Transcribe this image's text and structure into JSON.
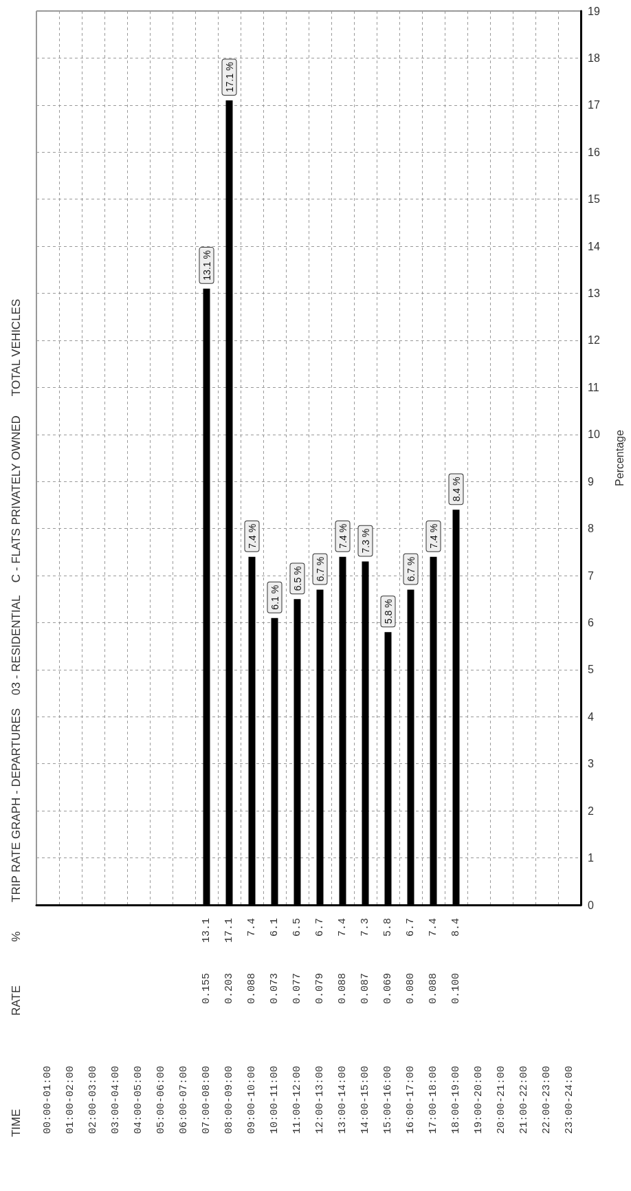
{
  "chart_data": {
    "type": "bar",
    "title": "TRIP RATE GRAPH - DEPARTURES    03 - RESIDENTIAL    C - FLATS PRIVATELY OWNED      TOTAL VEHICLES",
    "y2label": "Percentage",
    "categories": [
      "00:00-01:00",
      "01:00-02:00",
      "02:00-03:00",
      "03:00-04:00",
      "04:00-05:00",
      "05:00-06:00",
      "06:00-07:00",
      "07:00-08:00",
      "08:00-09:00",
      "09:00-10:00",
      "10:00-11:00",
      "11:00-12:00",
      "12:00-13:00",
      "13:00-14:00",
      "14:00-15:00",
      "15:00-16:00",
      "16:00-17:00",
      "17:00-18:00",
      "18:00-19:00",
      "19:00-20:00",
      "20:00-21:00",
      "21:00-22:00",
      "22:00-23:00",
      "23:00-24:00"
    ],
    "series": [
      {
        "axis": "y2",
        "color": "#000000",
        "values": [
          null,
          null,
          null,
          null,
          null,
          null,
          null,
          13.1,
          17.1,
          7.4,
          6.1,
          6.5,
          6.7,
          7.4,
          7.3,
          5.8,
          6.7,
          7.4,
          8.4,
          null,
          null,
          null,
          null,
          null
        ],
        "value_labels": [
          null,
          null,
          null,
          null,
          null,
          null,
          null,
          "13.1 %",
          "17.1 %",
          "7.4 %",
          "6.1 %",
          "6.5 %",
          "6.7 %",
          "7.4 %",
          "7.3 %",
          "5.8 %",
          "6.7 %",
          "7.4 %",
          "8.4 %",
          null,
          null,
          null,
          null,
          null
        ]
      }
    ],
    "y2lim": [
      0,
      19
    ],
    "y2ticks": [
      0,
      1,
      2,
      3,
      4,
      5,
      6,
      7,
      8,
      9,
      10,
      11,
      12,
      13,
      14,
      15,
      16,
      17,
      18,
      19
    ],
    "grid": true,
    "annotations": [
      "%",
      "13.1",
      "17.1",
      "7.4",
      "6.1",
      "6.5",
      "6.7",
      "7.4",
      "7.3",
      "5.8",
      "6.7",
      "7.4",
      "8.4",
      "RATE",
      "0.155",
      "0.203",
      "0.088",
      "0.073",
      "0.077",
      "0.079",
      "0.088",
      "0.087",
      "0.069",
      "0.080",
      "0.088",
      "0.100",
      "TIME"
    ]
  }
}
